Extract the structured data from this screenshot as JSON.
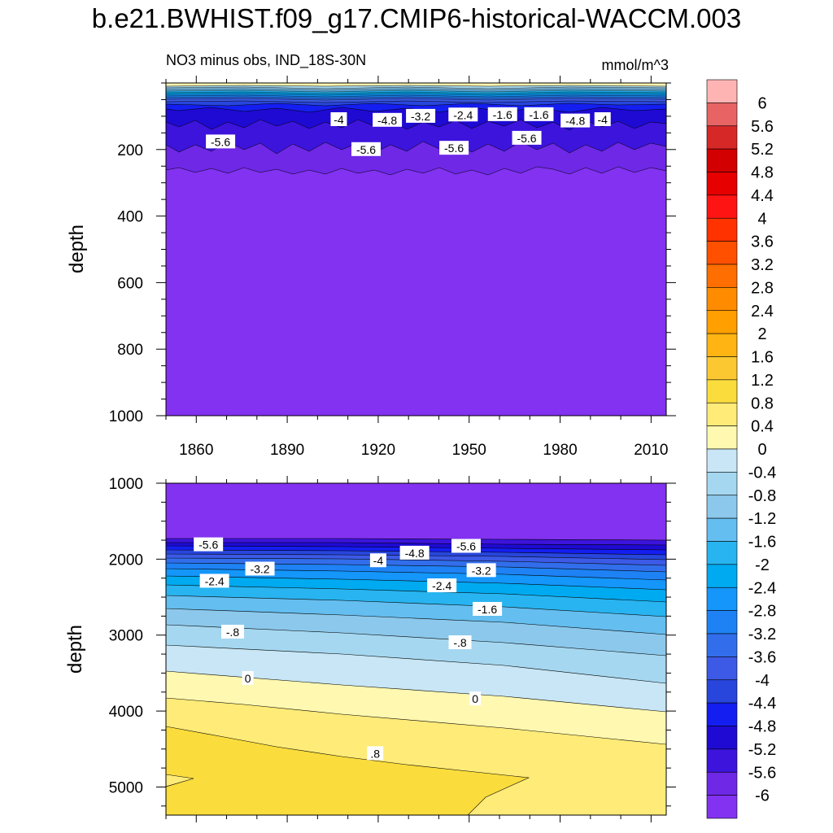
{
  "title": "b.e21.BWHIST.f09_g17.CMIP6-historical-WACCM.003",
  "subtitle": "NO3 minus obs, IND_18S-30N",
  "units": "mmol/m^3",
  "chart_data": [
    {
      "type": "contour",
      "panel": "upper",
      "ylabel": "depth",
      "xlim": [
        1850,
        2015
      ],
      "ylim": [
        1000,
        0
      ],
      "xticks": [
        1860,
        1890,
        1920,
        1950,
        1980,
        2010
      ],
      "xtick_labels": [
        "1860",
        "1890",
        "1920",
        "1950",
        "1980",
        "2010"
      ],
      "yticks": [
        200,
        400,
        600,
        800,
        1000
      ],
      "ytick_labels": [
        "200",
        "400",
        "600",
        "800",
        "1000"
      ],
      "contour_labels": [
        {
          "text": "-5.6",
          "x": 1868,
          "y": 177
        },
        {
          "text": "-4",
          "x": 1907,
          "y": 110
        },
        {
          "text": "-4.8",
          "x": 1923,
          "y": 112
        },
        {
          "text": "-3.2",
          "x": 1934,
          "y": 100
        },
        {
          "text": "-2.4",
          "x": 1948,
          "y": 96
        },
        {
          "text": "-1.6",
          "x": 1961,
          "y": 95
        },
        {
          "text": "-1.6",
          "x": 1973,
          "y": 95
        },
        {
          "text": "-4.8",
          "x": 1985,
          "y": 114
        },
        {
          "text": "-4",
          "x": 1994,
          "y": 110
        },
        {
          "text": "-5.6",
          "x": 1916,
          "y": 200
        },
        {
          "text": "-5.6",
          "x": 1945,
          "y": 196
        },
        {
          "text": "-5.6",
          "x": 1969,
          "y": 166
        }
      ]
    },
    {
      "type": "contour",
      "panel": "lower",
      "ylabel": "depth",
      "xlim": [
        1850,
        2015
      ],
      "ylim": [
        5370,
        1000
      ],
      "xticks": [
        1860,
        1890,
        1920,
        1950,
        1980,
        2010
      ],
      "yticks": [
        1000,
        2000,
        3000,
        4000,
        5000
      ],
      "ytick_labels": [
        "1000",
        "2000",
        "3000",
        "4000",
        "5000"
      ],
      "contour_labels": [
        {
          "text": "-5.6",
          "x": 1864,
          "y": 1810
        },
        {
          "text": "-3.2",
          "x": 1881,
          "y": 2130
        },
        {
          "text": "-2.4",
          "x": 1866,
          "y": 2290
        },
        {
          "text": "-4",
          "x": 1920,
          "y": 2020
        },
        {
          "text": "-4.8",
          "x": 1932,
          "y": 1920
        },
        {
          "text": "-5.6",
          "x": 1949,
          "y": 1830
        },
        {
          "text": "-3.2",
          "x": 1954,
          "y": 2150
        },
        {
          "text": "-2.4",
          "x": 1941,
          "y": 2350
        },
        {
          "text": "-1.6",
          "x": 1956,
          "y": 2660
        },
        {
          "text": "-.8",
          "x": 1872,
          "y": 2960
        },
        {
          "text": "-.8",
          "x": 1947,
          "y": 3100
        },
        {
          "text": "0",
          "x": 1877,
          "y": 3570
        },
        {
          "text": "0",
          "x": 1952,
          "y": 3840
        },
        {
          "text": ".8",
          "x": 1919,
          "y": 4560
        }
      ]
    }
  ],
  "colorbar": {
    "levels": [
      "6",
      "5.6",
      "5.2",
      "4.8",
      "4.4",
      "4",
      "3.6",
      "3.2",
      "2.8",
      "2.4",
      "2",
      "1.6",
      "1.2",
      "0.8",
      "0.4",
      "0",
      "-0.4",
      "-0.8",
      "-1.2",
      "-1.6",
      "-2",
      "-2.4",
      "-2.8",
      "-3.2",
      "-3.6",
      "-4",
      "-4.4",
      "-4.8",
      "-5.2",
      "-5.6",
      "-6"
    ],
    "colors": [
      "#FFB4B4",
      "#E86464",
      "#D72828",
      "#D20000",
      "#E60000",
      "#FF1414",
      "#FF3200",
      "#FF5000",
      "#FF6E00",
      "#FF8C00",
      "#FFA000",
      "#FFB414",
      "#FBC832",
      "#FADC3C",
      "#FFEB78",
      "#FFF8B0",
      "#C8E6F5",
      "#A5D7F0",
      "#8CC8EB",
      "#64BEF0",
      "#28B4F0",
      "#00AAF0",
      "#1496FA",
      "#1E82F5",
      "#326EEB",
      "#3C5AE6",
      "#2846DC",
      "#141EF0",
      "#1E0AD2",
      "#3C14DC",
      "#6E28E6",
      "#8232F0"
    ]
  }
}
